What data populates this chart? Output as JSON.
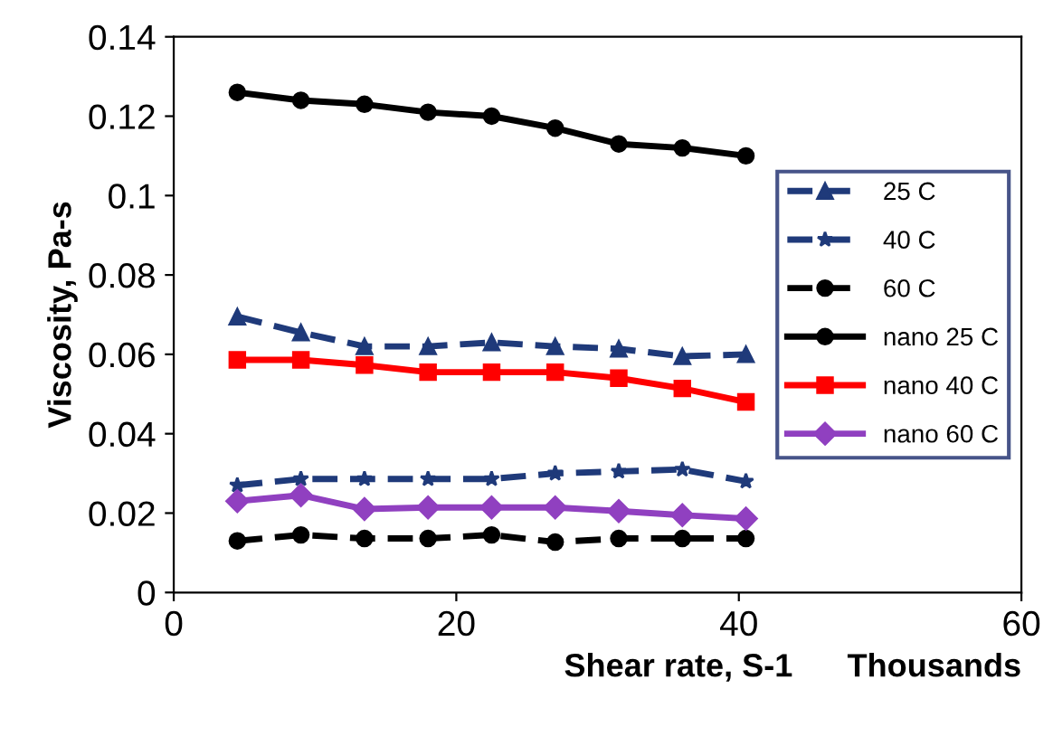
{
  "chart_data": {
    "type": "line",
    "xlabel": "Shear rate, S-1      Thousands",
    "ylabel": "Viscosity, Pa-s",
    "x": [
      4.5,
      9,
      13.5,
      18,
      22.5,
      27,
      31.5,
      36,
      40.5
    ],
    "series": [
      {
        "name": "25 C",
        "color": "#1f3a7a",
        "line_style": "dashed",
        "marker": "triangle",
        "values": [
          0.0695,
          0.0655,
          0.062,
          0.062,
          0.063,
          0.062,
          0.0614,
          0.0595,
          0.06
        ]
      },
      {
        "name": "40 C",
        "color": "#1f3a7a",
        "line_style": "dashed",
        "marker": "star",
        "values": [
          0.027,
          0.0286,
          0.0286,
          0.0286,
          0.0286,
          0.03,
          0.0305,
          0.031,
          0.028
        ]
      },
      {
        "name": "60 C",
        "color": "#000000",
        "line_style": "dashed",
        "marker": "circle",
        "values": [
          0.013,
          0.0145,
          0.0136,
          0.0136,
          0.0145,
          0.0127,
          0.0136,
          0.0136,
          0.0136
        ]
      },
      {
        "name": "nano 25 C",
        "color": "#000000",
        "line_style": "solid",
        "marker": "circle",
        "values": [
          0.126,
          0.124,
          0.123,
          0.121,
          0.12,
          0.117,
          0.113,
          0.112,
          0.11
        ]
      },
      {
        "name": "nano 40 C",
        "color": "#ff0000",
        "line_style": "solid",
        "marker": "square",
        "values": [
          0.0586,
          0.0586,
          0.0573,
          0.0555,
          0.0555,
          0.0555,
          0.054,
          0.0514,
          0.048
        ]
      },
      {
        "name": "nano 60 C",
        "color": "#9040c0",
        "line_style": "solid",
        "marker": "diamond",
        "values": [
          0.023,
          0.0245,
          0.021,
          0.0214,
          0.0214,
          0.0214,
          0.0205,
          0.0195,
          0.0186
        ]
      }
    ],
    "xlim": [
      0,
      60
    ],
    "xticks": [
      0,
      20,
      40,
      60
    ],
    "ylim": [
      0,
      0.14
    ],
    "yticks": [
      0,
      0.02,
      0.04,
      0.06,
      0.08,
      0.1,
      0.12,
      0.14
    ],
    "grid": false,
    "legend": "center right"
  }
}
